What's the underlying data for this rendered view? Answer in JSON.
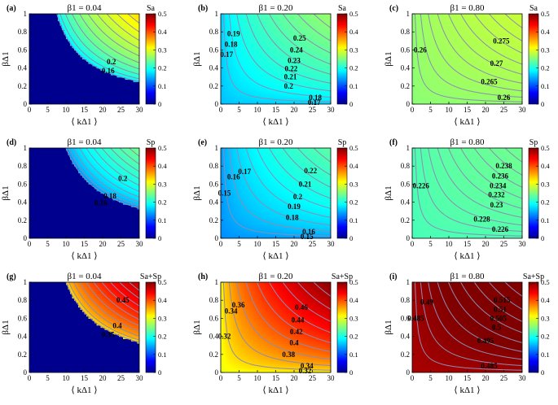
{
  "figure": {
    "colorbar_ticks": [
      "0",
      "0.1",
      "0.2",
      "0.3",
      "0.4",
      "0.5"
    ],
    "colormap": [
      "#00008f",
      "#0000ff",
      "#0080ff",
      "#00ffff",
      "#80ff80",
      "#ffff00",
      "#ff8000",
      "#ff0000",
      "#800000"
    ],
    "contour_line_color": "#8c8cb4"
  },
  "chart_data": [
    {
      "panel": "(a)",
      "title": "β1 = 0.04",
      "beta1": 0.04,
      "metric": "Sa",
      "colorbar_label": "Sa",
      "type": "heatmap",
      "xlabel": "⟨ kΔ1 ⟩",
      "ylabel": "βΔ1",
      "xlim": [
        0,
        30
      ],
      "ylim": [
        0,
        1
      ],
      "clim": [
        0,
        0.5
      ],
      "xticks": [
        "0",
        "5",
        "10",
        "15",
        "20",
        "25",
        "30"
      ],
      "yticks": [
        "0",
        "0.2",
        "0.4",
        "0.6",
        "0.8",
        "1"
      ],
      "base_value": 0.0,
      "threshold_product": 7.5,
      "max_value": 0.33,
      "min_value": 0.17,
      "contour_labels": [
        {
          "text": "0.2",
          "x": 22.4,
          "y": 0.47
        },
        {
          "text": "0.16",
          "x": 21.5,
          "y": 0.37
        }
      ]
    },
    {
      "panel": "(b)",
      "title": "β1 = 0.20",
      "beta1": 0.2,
      "metric": "Sa",
      "colorbar_label": "Sa",
      "type": "heatmap",
      "xlabel": "⟨ kΔ1 ⟩",
      "ylabel": "βΔ1",
      "xlim": [
        0,
        30
      ],
      "ylim": [
        0,
        1
      ],
      "clim": [
        0,
        0.5
      ],
      "xticks": [
        "0",
        "5",
        "10",
        "15",
        "20",
        "25",
        "30"
      ],
      "yticks": [
        "0",
        "0.2",
        "0.4",
        "0.6",
        "0.8",
        "1"
      ],
      "base_value": 0.155,
      "threshold_product": 0,
      "max_value": 0.262,
      "min_value": 0.155,
      "contour_labels": [
        {
          "text": "0.19",
          "x": 3.5,
          "y": 0.78
        },
        {
          "text": "0.18",
          "x": 2.8,
          "y": 0.66
        },
        {
          "text": "0.17",
          "x": 1.6,
          "y": 0.55
        },
        {
          "text": "0.25",
          "x": 21.5,
          "y": 0.73
        },
        {
          "text": "0.24",
          "x": 20.6,
          "y": 0.6
        },
        {
          "text": "0.23",
          "x": 20,
          "y": 0.48
        },
        {
          "text": "0.22",
          "x": 19.2,
          "y": 0.39
        },
        {
          "text": "0.21",
          "x": 19,
          "y": 0.3
        },
        {
          "text": "0.2",
          "x": 18.5,
          "y": 0.2
        },
        {
          "text": "0.18",
          "x": 25.8,
          "y": 0.07
        },
        {
          "text": "0.17",
          "x": 25.5,
          "y": 0.02
        }
      ]
    },
    {
      "panel": "(c)",
      "title": "β1 = 0.80",
      "beta1": 0.8,
      "metric": "Sa",
      "colorbar_label": "Sa",
      "type": "heatmap",
      "xlabel": "⟨ kΔ1 ⟩",
      "ylabel": "βΔ1",
      "xlim": [
        0,
        30
      ],
      "ylim": [
        0,
        1
      ],
      "clim": [
        0,
        0.5
      ],
      "xticks": [
        "0",
        "5",
        "10",
        "15",
        "20",
        "25",
        "30"
      ],
      "yticks": [
        "0",
        "0.2",
        "0.4",
        "0.6",
        "0.8",
        "1"
      ],
      "base_value": 0.255,
      "threshold_product": 0,
      "max_value": 0.285,
      "min_value": 0.255,
      "contour_labels": [
        {
          "text": "0.26",
          "x": 2.2,
          "y": 0.6
        },
        {
          "text": "0.275",
          "x": 24.3,
          "y": 0.7
        },
        {
          "text": "0.27",
          "x": 23,
          "y": 0.45
        },
        {
          "text": "0.265",
          "x": 21,
          "y": 0.25
        },
        {
          "text": "0.26",
          "x": 25,
          "y": 0.07
        }
      ]
    },
    {
      "panel": "(d)",
      "title": "β1 = 0.04",
      "beta1": 0.04,
      "metric": "Sp",
      "colorbar_label": "Sp",
      "type": "heatmap",
      "xlabel": "⟨ kΔ1 ⟩",
      "ylabel": "βΔ1",
      "xlim": [
        0,
        30
      ],
      "ylim": [
        0,
        1
      ],
      "clim": [
        0,
        0.5
      ],
      "xticks": [
        "0",
        "5",
        "10",
        "15",
        "20",
        "25",
        "30"
      ],
      "yticks": [
        "0",
        "0.2",
        "0.4",
        "0.6",
        "0.8",
        "1"
      ],
      "base_value": 0.0,
      "threshold_product": 10,
      "max_value": 0.245,
      "min_value": 0.13,
      "contour_labels": [
        {
          "text": "0.2",
          "x": 25.5,
          "y": 0.66
        },
        {
          "text": "0.18",
          "x": 22,
          "y": 0.47
        },
        {
          "text": "0.16",
          "x": 19.5,
          "y": 0.39
        }
      ]
    },
    {
      "panel": "(e)",
      "title": "β1 = 0.20",
      "beta1": 0.2,
      "metric": "Sp",
      "colorbar_label": "Sp",
      "type": "heatmap",
      "xlabel": "⟨ kΔ1 ⟩",
      "ylabel": "βΔ1",
      "xlim": [
        0,
        30
      ],
      "ylim": [
        0,
        1
      ],
      "clim": [
        0,
        0.5
      ],
      "xticks": [
        "0",
        "5",
        "10",
        "15",
        "20",
        "25",
        "30"
      ],
      "yticks": [
        "0",
        "0.2",
        "0.4",
        "0.6",
        "0.8",
        "1"
      ],
      "base_value": 0.13,
      "threshold_product": 0,
      "max_value": 0.232,
      "min_value": 0.13,
      "contour_labels": [
        {
          "text": "0.17",
          "x": 6.5,
          "y": 0.74
        },
        {
          "text": "0.16",
          "x": 3.5,
          "y": 0.68
        },
        {
          "text": "0.15",
          "x": 1,
          "y": 0.5
        },
        {
          "text": "0.22",
          "x": 24.5,
          "y": 0.75
        },
        {
          "text": "0.21",
          "x": 23,
          "y": 0.6
        },
        {
          "text": "0.2",
          "x": 21,
          "y": 0.46
        },
        {
          "text": "0.19",
          "x": 20,
          "y": 0.35
        },
        {
          "text": "0.18",
          "x": 19.5,
          "y": 0.23
        },
        {
          "text": "0.16",
          "x": 24,
          "y": 0.07
        },
        {
          "text": "0.15",
          "x": 23.5,
          "y": 0.02
        }
      ]
    },
    {
      "panel": "(f)",
      "title": "β1 = 0.80",
      "beta1": 0.8,
      "metric": "Sp",
      "colorbar_label": "Sp",
      "type": "heatmap",
      "xlabel": "⟨ kΔ1 ⟩",
      "ylabel": "βΔ1",
      "xlim": [
        0,
        30
      ],
      "ylim": [
        0,
        1
      ],
      "clim": [
        0,
        0.5
      ],
      "xticks": [
        "0",
        "5",
        "10",
        "15",
        "20",
        "25",
        "30"
      ],
      "yticks": [
        "0",
        "0.2",
        "0.4",
        "0.6",
        "0.8",
        "1"
      ],
      "base_value": 0.222,
      "threshold_product": 0,
      "max_value": 0.242,
      "min_value": 0.222,
      "contour_labels": [
        {
          "text": "0.226",
          "x": 2.4,
          "y": 0.58
        },
        {
          "text": "0.238",
          "x": 25,
          "y": 0.8
        },
        {
          "text": "0.236",
          "x": 24,
          "y": 0.69
        },
        {
          "text": "0.234",
          "x": 23.4,
          "y": 0.58
        },
        {
          "text": "0.232",
          "x": 23,
          "y": 0.48
        },
        {
          "text": "0.23",
          "x": 23,
          "y": 0.37
        },
        {
          "text": "0.228",
          "x": 19,
          "y": 0.21
        },
        {
          "text": "0.226",
          "x": 24,
          "y": 0.1
        }
      ]
    },
    {
      "panel": "(g)",
      "title": "β1 = 0.04",
      "beta1": 0.04,
      "metric": "Sa+Sp",
      "colorbar_label": "Sa+Sp",
      "type": "heatmap",
      "xlabel": "⟨ kΔ1 ⟩",
      "ylabel": "βΔ1",
      "xlim": [
        0,
        30
      ],
      "ylim": [
        0,
        1
      ],
      "clim": [
        0,
        0.5
      ],
      "xticks": [
        "0",
        "5",
        "10",
        "15",
        "20",
        "25",
        "30"
      ],
      "yticks": [
        "0",
        "0.2",
        "0.4",
        "0.6",
        "0.8",
        "1"
      ],
      "base_value": 0.0,
      "threshold_product": 10,
      "max_value": 0.47,
      "min_value": 0.32,
      "contour_labels": [
        {
          "text": "0.45",
          "x": 25.5,
          "y": 0.8
        },
        {
          "text": "0.4",
          "x": 24,
          "y": 0.52
        },
        {
          "text": "0.35",
          "x": 21.5,
          "y": 0.42
        }
      ]
    },
    {
      "panel": "(h)",
      "title": "β1 = 0.20",
      "beta1": 0.2,
      "metric": "Sa+Sp",
      "colorbar_label": "Sa+Sp",
      "type": "heatmap",
      "xlabel": "⟨ kΔ1 ⟩",
      "ylabel": "βΔ1",
      "xlim": [
        0,
        30
      ],
      "ylim": [
        0,
        1
      ],
      "clim": [
        0,
        0.5
      ],
      "xticks": [
        "0",
        "5",
        "10",
        "15",
        "20",
        "25",
        "30"
      ],
      "yticks": [
        "0",
        "0.2",
        "0.4",
        "0.6",
        "0.8",
        "1"
      ],
      "base_value": 0.3,
      "threshold_product": 0,
      "max_value": 0.495,
      "min_value": 0.3,
      "contour_labels": [
        {
          "text": "0.36",
          "x": 4.8,
          "y": 0.75
        },
        {
          "text": "0.34",
          "x": 2.8,
          "y": 0.68
        },
        {
          "text": "0.32",
          "x": 1,
          "y": 0.4
        },
        {
          "text": "0.46",
          "x": 22,
          "y": 0.72
        },
        {
          "text": "0.44",
          "x": 21,
          "y": 0.58
        },
        {
          "text": "0.42",
          "x": 20.6,
          "y": 0.45
        },
        {
          "text": "0.4",
          "x": 20,
          "y": 0.33
        },
        {
          "text": "0.38",
          "x": 18.5,
          "y": 0.2
        },
        {
          "text": "0.34",
          "x": 23.5,
          "y": 0.07
        },
        {
          "text": "0.32",
          "x": 23,
          "y": 0.02
        }
      ]
    },
    {
      "panel": "(i)",
      "title": "β1 = 0.80",
      "beta1": 0.8,
      "metric": "Sa+Sp",
      "colorbar_label": "Sa+Sp",
      "type": "heatmap",
      "xlabel": "⟨ kΔ1 ⟩",
      "ylabel": "βΔ1",
      "xlim": [
        0,
        30
      ],
      "ylim": [
        0,
        1
      ],
      "clim": [
        0,
        0.5
      ],
      "xticks": [
        "0",
        "5",
        "10",
        "15",
        "20",
        "25",
        "30"
      ],
      "yticks": [
        "0",
        "0.2",
        "0.4",
        "0.6",
        "0.8",
        "1"
      ],
      "base_value": 0.478,
      "threshold_product": 0,
      "max_value": 0.52,
      "min_value": 0.478,
      "contour_labels": [
        {
          "text": "0.49",
          "x": 4,
          "y": 0.78
        },
        {
          "text": "0.485",
          "x": 1,
          "y": 0.6
        },
        {
          "text": "0.515",
          "x": 24.5,
          "y": 0.8
        },
        {
          "text": "0.51",
          "x": 24,
          "y": 0.7
        },
        {
          "text": "0.505",
          "x": 23.5,
          "y": 0.6
        },
        {
          "text": "0.5",
          "x": 23,
          "y": 0.5
        },
        {
          "text": "0.495",
          "x": 20,
          "y": 0.35
        },
        {
          "text": "0.485",
          "x": 21,
          "y": 0.07
        }
      ]
    }
  ]
}
